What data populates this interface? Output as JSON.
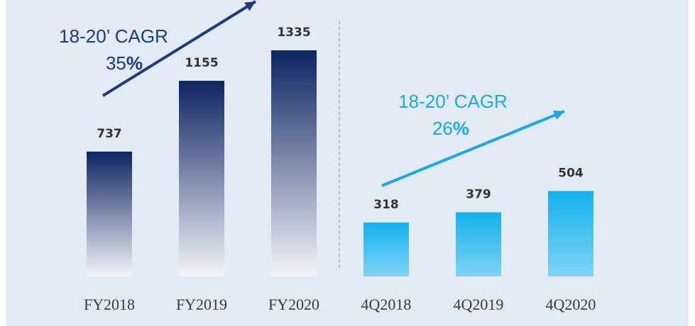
{
  "chart_data": {
    "type": "bar",
    "categories": [
      "FY2018",
      "FY2019",
      "FY2020",
      "4Q2018",
      "4Q2019",
      "4Q2020"
    ],
    "values": [
      737,
      1155,
      1335,
      318,
      379,
      504
    ],
    "colors": [
      "#0c2461",
      "#0c2461",
      "#0c2461",
      "#12b1ec",
      "#12b1ec",
      "#12b1ec"
    ],
    "annotations": [
      {
        "label": "18-20’ CAGR",
        "value": 35,
        "unit": "%",
        "color": "#1f3a80"
      },
      {
        "label": "18-20’ CAGR",
        "value": 26,
        "unit": "%",
        "color": "#1aa8e8"
      }
    ]
  }
}
